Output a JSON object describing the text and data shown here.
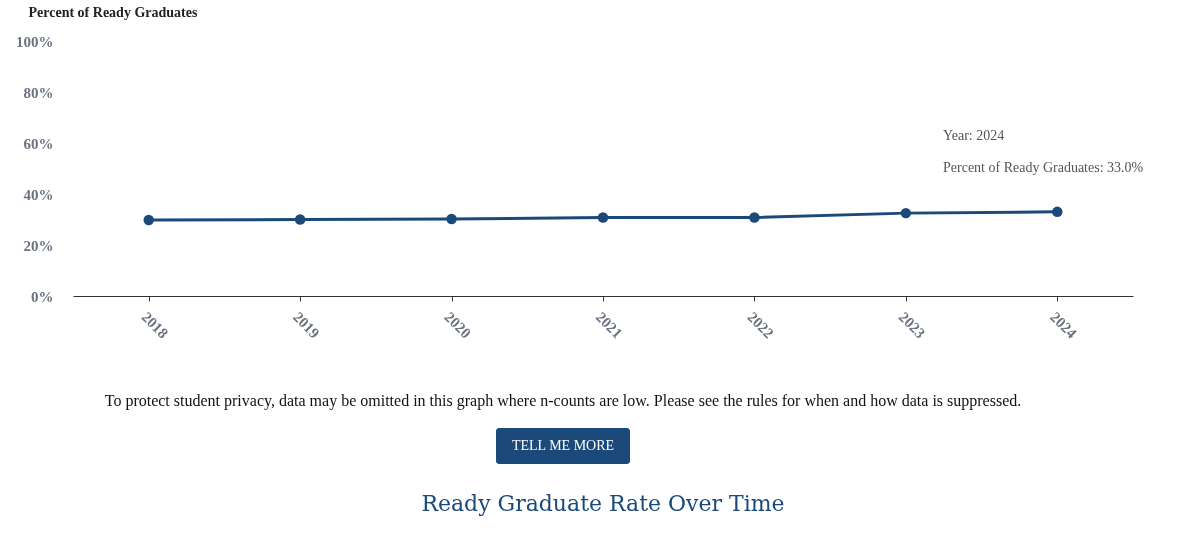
{
  "chart_data": {
    "type": "line",
    "title": "Ready Graduate Rate Over Time",
    "ylabel": "Percent of Ready Graduates",
    "categories": [
      "2018",
      "2019",
      "2020",
      "2021",
      "2022",
      "2023",
      "2024"
    ],
    "series": [
      {
        "color": "#1b4a7a",
        "values": [
          29.8,
          30.0,
          30.2,
          30.8,
          30.8,
          32.5,
          33.0
        ]
      }
    ],
    "ylim": [
      0,
      100
    ],
    "yticks": [
      {
        "value": 0,
        "label": "0%"
      },
      {
        "value": 20,
        "label": "20%"
      },
      {
        "value": 40,
        "label": "40%"
      },
      {
        "value": 60,
        "label": "60%"
      },
      {
        "value": 80,
        "label": "80%"
      },
      {
        "value": 100,
        "label": "100%"
      }
    ],
    "grid": false,
    "legend": false,
    "marker": "circle",
    "line_style": "solid",
    "annotations": [
      "Year: 2024",
      "Percent of Ready Graduates: 33.0%",
      "To protect student privacy, data may be omitted in this graph where n-counts are low. Please see the rules for when and how data is suppressed.",
      "TELL ME MORE"
    ]
  }
}
